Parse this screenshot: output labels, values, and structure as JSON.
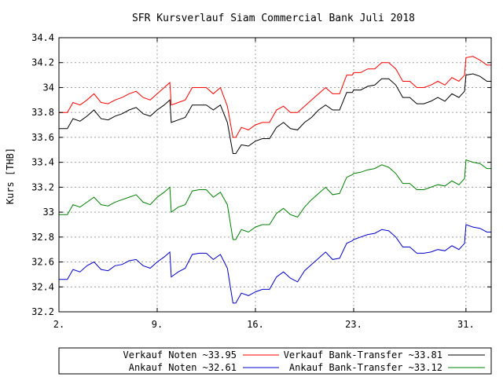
{
  "chart_data": {
    "type": "line",
    "title": "SFR Kursverlauf Siam Commercial Bank Juli 2018",
    "xlabel": "",
    "ylabel": "Kurs [THB]",
    "xlim": [
      2,
      32.8
    ],
    "ylim": [
      32.2,
      34.4
    ],
    "x_ticks": [
      {
        "value": 2,
        "label": "2."
      },
      {
        "value": 9,
        "label": "9."
      },
      {
        "value": 16,
        "label": "16."
      },
      {
        "value": 23,
        "label": "23."
      },
      {
        "value": 31,
        "label": "31."
      }
    ],
    "y_ticks": [
      {
        "value": 32.2,
        "label": "32.2"
      },
      {
        "value": 32.4,
        "label": "32.4"
      },
      {
        "value": 32.6,
        "label": "32.6"
      },
      {
        "value": 32.8,
        "label": "32.8"
      },
      {
        "value": 33.0,
        "label": "33"
      },
      {
        "value": 33.2,
        "label": "33.2"
      },
      {
        "value": 33.4,
        "label": "33.4"
      },
      {
        "value": 33.6,
        "label": "33.6"
      },
      {
        "value": 33.8,
        "label": "33.8"
      },
      {
        "value": 34.0,
        "label": "34"
      },
      {
        "value": 34.2,
        "label": "34.2"
      },
      {
        "value": 34.4,
        "label": "34.4"
      }
    ],
    "grid": true,
    "legend_position": "bottom",
    "series": [
      {
        "name": "Verkauf Noten ~33.95",
        "color": "#ff0000",
        "x": [
          2,
          2.6,
          3,
          3.5,
          4,
          4.5,
          5,
          5.5,
          6,
          6.5,
          7,
          7.5,
          8,
          8.5,
          9,
          9.5,
          9.9,
          10,
          10.5,
          11,
          11.5,
          12,
          12.5,
          13,
          13.5,
          14,
          14.4,
          14.6,
          15,
          15.5,
          16,
          16.5,
          17,
          17.5,
          18,
          18.5,
          19,
          19.5,
          20,
          20.5,
          21,
          21.5,
          22,
          22.5,
          22.9,
          23,
          23.5,
          24,
          24.5,
          25,
          25.5,
          26,
          26.5,
          27,
          27.5,
          28,
          28.5,
          29,
          29.5,
          30,
          30.5,
          30.9,
          31,
          31.5,
          32,
          32.5,
          32.8
        ],
        "y": [
          33.8,
          33.8,
          33.88,
          33.86,
          33.9,
          33.95,
          33.88,
          33.87,
          33.9,
          33.92,
          33.95,
          33.97,
          33.92,
          33.9,
          33.95,
          34,
          34.04,
          33.86,
          33.88,
          33.9,
          34,
          34,
          34,
          33.95,
          34,
          33.85,
          33.6,
          33.6,
          33.68,
          33.66,
          33.7,
          33.72,
          33.72,
          33.82,
          33.85,
          33.8,
          33.8,
          33.85,
          33.9,
          33.95,
          34,
          33.95,
          33.95,
          34.1,
          34.1,
          34.12,
          34.12,
          34.15,
          34.15,
          34.2,
          34.2,
          34.15,
          34.05,
          34.05,
          34,
          34,
          34.02,
          34.05,
          34.02,
          34.08,
          34.05,
          34.1,
          34.24,
          34.25,
          34.22,
          34.18,
          34.18
        ]
      },
      {
        "name": "Verkauf Bank-Transfer ~33.81",
        "color": "#000000",
        "x": [
          2,
          2.6,
          3,
          3.5,
          4,
          4.5,
          5,
          5.5,
          6,
          6.5,
          7,
          7.5,
          8,
          8.5,
          9,
          9.5,
          9.9,
          10,
          10.5,
          11,
          11.5,
          12,
          12.5,
          13,
          13.5,
          14,
          14.4,
          14.6,
          15,
          15.5,
          16,
          16.5,
          17,
          17.5,
          18,
          18.5,
          19,
          19.5,
          20,
          20.5,
          21,
          21.5,
          22,
          22.5,
          22.9,
          23,
          23.5,
          24,
          24.5,
          25,
          25.5,
          26,
          26.5,
          27,
          27.5,
          28,
          28.5,
          29,
          29.5,
          30,
          30.5,
          30.9,
          31,
          31.5,
          32,
          32.5,
          32.8
        ],
        "y": [
          33.67,
          33.67,
          33.75,
          33.73,
          33.77,
          33.82,
          33.75,
          33.74,
          33.77,
          33.79,
          33.82,
          33.84,
          33.79,
          33.77,
          33.82,
          33.86,
          33.9,
          33.72,
          33.74,
          33.76,
          33.86,
          33.86,
          33.86,
          33.82,
          33.86,
          33.72,
          33.47,
          33.47,
          33.54,
          33.53,
          33.57,
          33.59,
          33.59,
          33.68,
          33.72,
          33.67,
          33.66,
          33.72,
          33.76,
          33.82,
          33.86,
          33.82,
          33.82,
          33.96,
          33.96,
          33.98,
          33.98,
          34.01,
          34.02,
          34.07,
          34.07,
          34.02,
          33.92,
          33.92,
          33.87,
          33.87,
          33.89,
          33.92,
          33.89,
          33.95,
          33.92,
          33.97,
          34.1,
          34.11,
          34.09,
          34.05,
          34.05
        ]
      },
      {
        "name": "Ankauf Noten ~32.61",
        "color": "#0000cc",
        "x": [
          2,
          2.6,
          3,
          3.5,
          4,
          4.5,
          5,
          5.5,
          6,
          6.5,
          7,
          7.5,
          8,
          8.5,
          9,
          9.5,
          9.9,
          10,
          10.5,
          11,
          11.5,
          12,
          12.5,
          13,
          13.5,
          14,
          14.4,
          14.6,
          15,
          15.5,
          16,
          16.5,
          17,
          17.5,
          18,
          18.5,
          19,
          19.5,
          20,
          20.5,
          21,
          21.5,
          22,
          22.5,
          22.9,
          23,
          23.5,
          24,
          24.5,
          25,
          25.5,
          26,
          26.5,
          27,
          27.5,
          28,
          28.5,
          29,
          29.5,
          30,
          30.5,
          30.9,
          31,
          31.5,
          32,
          32.5,
          32.8
        ],
        "y": [
          32.46,
          32.46,
          32.54,
          32.52,
          32.57,
          32.6,
          32.54,
          32.53,
          32.57,
          32.58,
          32.61,
          32.62,
          32.57,
          32.55,
          32.6,
          32.64,
          32.68,
          32.48,
          32.52,
          32.55,
          32.66,
          32.67,
          32.67,
          32.62,
          32.66,
          32.55,
          32.27,
          32.27,
          32.35,
          32.33,
          32.36,
          32.38,
          32.38,
          32.48,
          32.52,
          32.47,
          32.44,
          32.53,
          32.58,
          32.63,
          32.68,
          32.62,
          32.63,
          32.75,
          32.77,
          32.78,
          32.8,
          32.82,
          32.83,
          32.86,
          32.85,
          32.8,
          32.72,
          32.72,
          32.67,
          32.67,
          32.68,
          32.7,
          32.69,
          32.73,
          32.7,
          32.75,
          32.9,
          32.88,
          32.87,
          32.84,
          32.84
        ]
      },
      {
        "name": "Ankauf Bank-Transfer ~33.12",
        "color": "#008000",
        "x": [
          2,
          2.6,
          3,
          3.5,
          4,
          4.5,
          5,
          5.5,
          6,
          6.5,
          7,
          7.5,
          8,
          8.5,
          9,
          9.5,
          9.9,
          10,
          10.5,
          11,
          11.5,
          12,
          12.5,
          13,
          13.5,
          14,
          14.4,
          14.6,
          15,
          15.5,
          16,
          16.5,
          17,
          17.5,
          18,
          18.5,
          19,
          19.5,
          20,
          20.5,
          21,
          21.5,
          22,
          22.5,
          22.9,
          23,
          23.5,
          24,
          24.5,
          25,
          25.5,
          26,
          26.5,
          27,
          27.5,
          28,
          28.5,
          29,
          29.5,
          30,
          30.5,
          30.9,
          31,
          31.5,
          32,
          32.5,
          32.8
        ],
        "y": [
          32.98,
          32.98,
          33.06,
          33.04,
          33.08,
          33.12,
          33.06,
          33.05,
          33.08,
          33.1,
          33.12,
          33.14,
          33.08,
          33.06,
          33.12,
          33.16,
          33.2,
          33,
          33.04,
          33.06,
          33.17,
          33.18,
          33.18,
          33.12,
          33.16,
          33.06,
          32.78,
          32.78,
          32.86,
          32.84,
          32.88,
          32.9,
          32.9,
          32.99,
          33.03,
          32.98,
          32.96,
          33.04,
          33.1,
          33.15,
          33.2,
          33.14,
          33.15,
          33.28,
          33.3,
          33.31,
          33.32,
          33.34,
          33.35,
          33.38,
          33.36,
          33.31,
          33.23,
          33.23,
          33.18,
          33.18,
          33.2,
          33.22,
          33.21,
          33.25,
          33.22,
          33.27,
          33.42,
          33.4,
          33.39,
          33.35,
          33.35
        ]
      }
    ]
  }
}
